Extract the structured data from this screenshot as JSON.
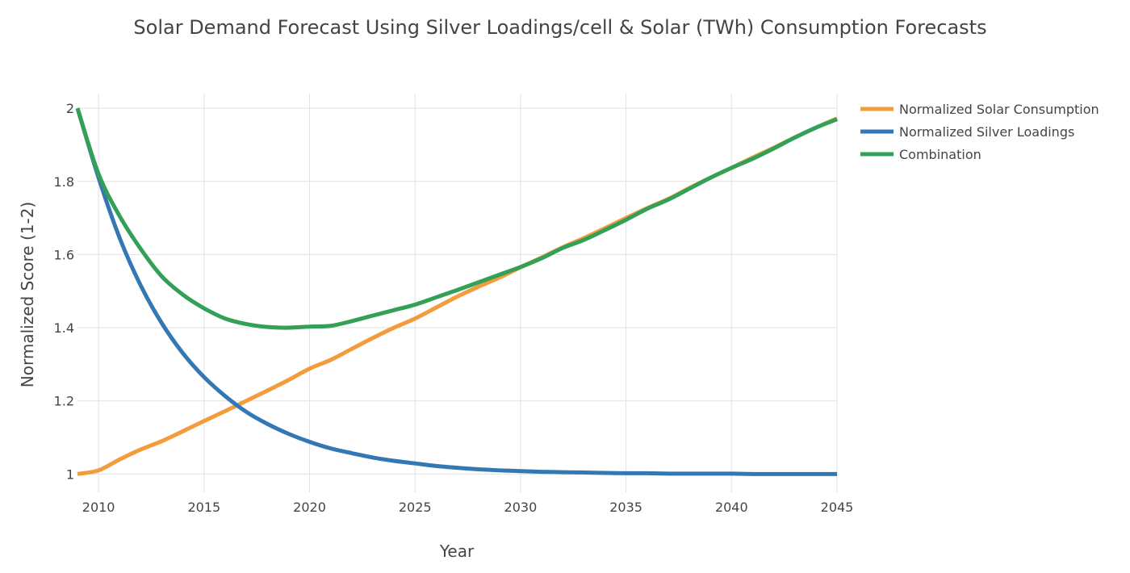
{
  "chart_data": {
    "type": "line",
    "title": "Solar Demand Forecast Using Silver Loadings/cell & Solar (TWh) Consumption Forecasts",
    "xlabel": "Year",
    "ylabel": "Normalized Score (1-2)",
    "xlim": [
      2009,
      2045
    ],
    "ylim": [
      0.95,
      2.04
    ],
    "x_ticks": [
      2010,
      2015,
      2020,
      2025,
      2030,
      2035,
      2040,
      2045
    ],
    "y_ticks": [
      1,
      1.2,
      1.4,
      1.6,
      1.8,
      2
    ],
    "y_tick_labels": [
      "1",
      "1.2",
      "1.4",
      "1.6",
      "1.8",
      "2"
    ],
    "grid": true,
    "legend_position": "top-right",
    "x": [
      2009,
      2010,
      2011,
      2012,
      2013,
      2014,
      2015,
      2016,
      2017,
      2018,
      2019,
      2020,
      2021,
      2022,
      2023,
      2024,
      2025,
      2026,
      2027,
      2028,
      2029,
      2030,
      2031,
      2032,
      2033,
      2034,
      2035,
      2036,
      2037,
      2038,
      2039,
      2040,
      2041,
      2042,
      2043,
      2044,
      2045
    ],
    "series": [
      {
        "name": "Normalized Solar Consumption",
        "color": "#f39c3c",
        "values": [
          1.0,
          1.01,
          1.04,
          1.067,
          1.09,
          1.117,
          1.145,
          1.172,
          1.2,
          1.228,
          1.257,
          1.288,
          1.312,
          1.342,
          1.372,
          1.4,
          1.425,
          1.455,
          1.485,
          1.512,
          1.537,
          1.565,
          1.592,
          1.62,
          1.645,
          1.672,
          1.7,
          1.727,
          1.752,
          1.782,
          1.81,
          1.837,
          1.865,
          1.892,
          1.92,
          1.947,
          1.972
        ]
      },
      {
        "name": "Normalized Silver Loadings",
        "color": "#3477b5",
        "values": [
          2.0,
          1.81,
          1.645,
          1.515,
          1.412,
          1.33,
          1.265,
          1.213,
          1.17,
          1.137,
          1.11,
          1.088,
          1.07,
          1.057,
          1.045,
          1.036,
          1.029,
          1.022,
          1.017,
          1.013,
          1.01,
          1.008,
          1.006,
          1.005,
          1.004,
          1.003,
          1.002,
          1.002,
          1.001,
          1.001,
          1.001,
          1.001,
          1.0,
          1.0,
          1.0,
          1.0,
          1.0
        ]
      },
      {
        "name": "Combination",
        "color": "#32a057",
        "values": [
          2.0,
          1.82,
          1.705,
          1.615,
          1.54,
          1.49,
          1.453,
          1.425,
          1.41,
          1.402,
          1.4,
          1.403,
          1.405,
          1.418,
          1.433,
          1.448,
          1.463,
          1.483,
          1.503,
          1.524,
          1.545,
          1.566,
          1.59,
          1.618,
          1.64,
          1.667,
          1.695,
          1.725,
          1.75,
          1.78,
          1.81,
          1.837,
          1.862,
          1.89,
          1.92,
          1.947,
          1.97
        ]
      }
    ]
  }
}
